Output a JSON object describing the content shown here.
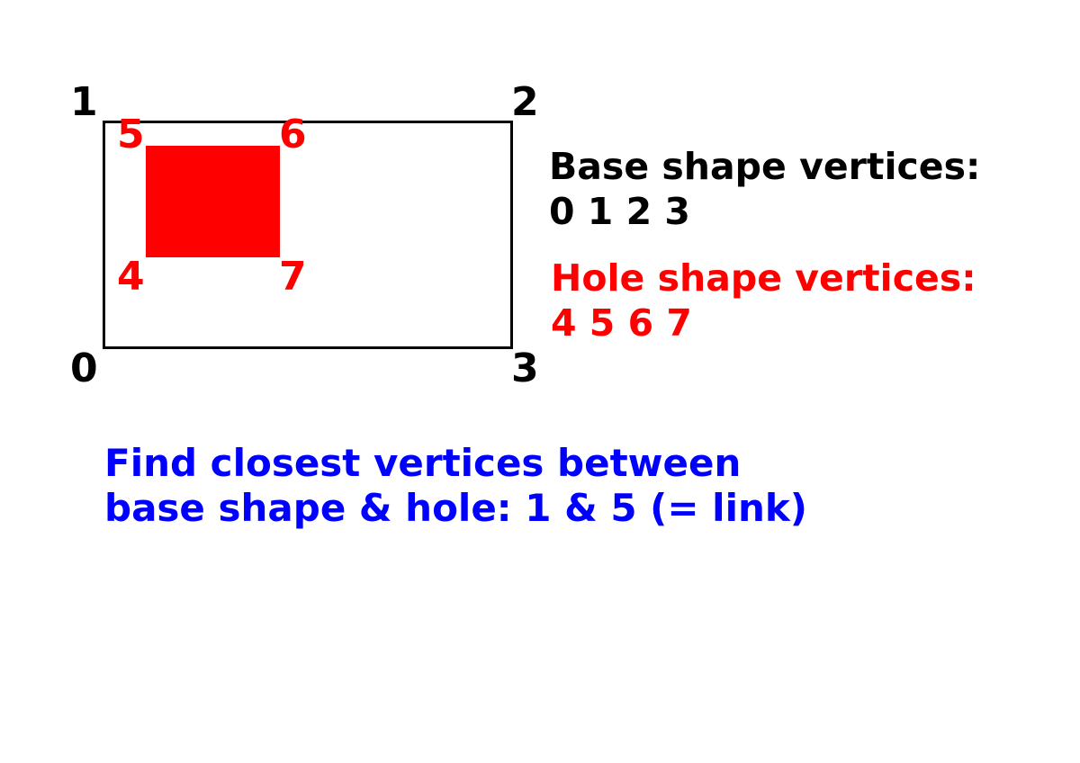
{
  "colors": {
    "base": "#000000",
    "hole": "#ff0000",
    "caption": "#0000ff",
    "background": "#ffffff"
  },
  "base_shape": {
    "vertices": [
      "0",
      "1",
      "2",
      "3"
    ],
    "heading": "Base shape vertices:",
    "vertex_list": "0 1 2 3"
  },
  "hole_shape": {
    "vertices": [
      "4",
      "5",
      "6",
      "7"
    ],
    "heading": "Hole shape vertices:",
    "vertex_list": "4 5 6 7"
  },
  "caption": {
    "line1": "Find closest vertices between",
    "line2": "base shape & hole: 1 & 5 (= link)"
  }
}
